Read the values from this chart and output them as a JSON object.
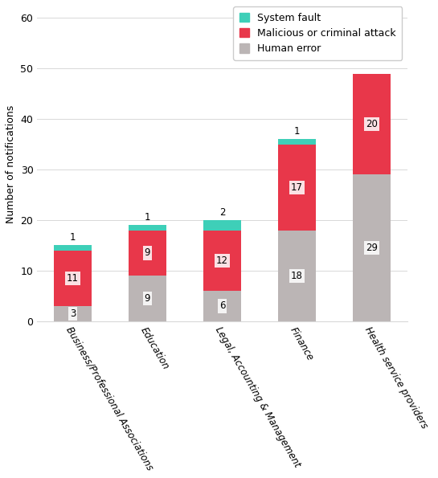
{
  "categories": [
    "Business/Professional Associations",
    "Education",
    "Legal, Accounting & Management",
    "Finance",
    "Health service providers"
  ],
  "human_error": [
    3,
    9,
    6,
    18,
    29
  ],
  "malicious": [
    11,
    9,
    12,
    17,
    20
  ],
  "system_fault": [
    1,
    1,
    2,
    1,
    0
  ],
  "colors": {
    "human_error": "#bbb5b5",
    "malicious": "#e8374a",
    "system_fault": "#3ecfb8"
  },
  "ylabel": "Number of notifications",
  "ylim": [
    0,
    62
  ],
  "yticks": [
    0,
    10,
    20,
    30,
    40,
    50,
    60
  ],
  "legend_labels": [
    "System fault",
    "Malicious or criminal attack",
    "Human error"
  ],
  "background_color": "#ffffff",
  "bar_width": 0.5
}
